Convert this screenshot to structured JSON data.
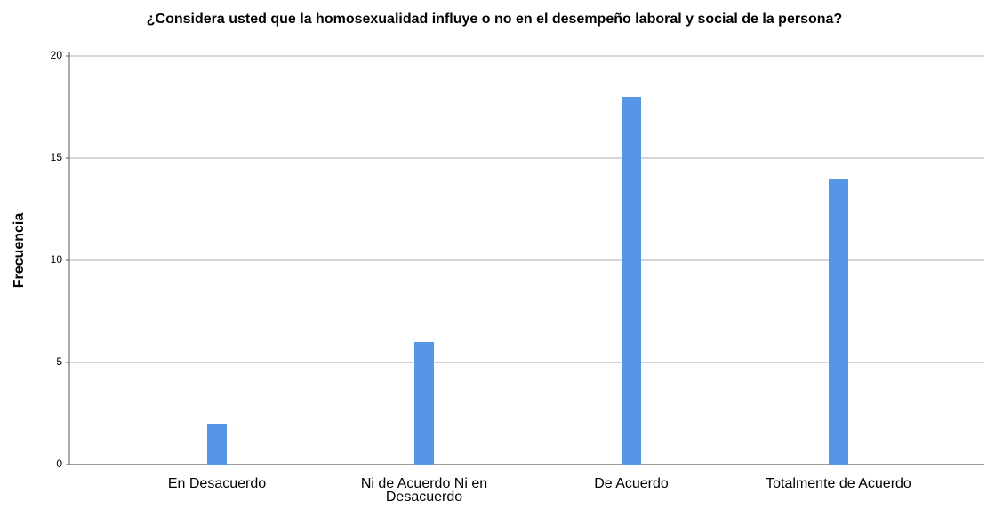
{
  "chart_data": {
    "type": "bar",
    "title": "¿Considera usted que la homosexualidad influye o no en el desempeño laboral y social de la persona?",
    "y_label": "Frecuencia",
    "categories": [
      "En Desacuerdo",
      "Ni de Acuerdo Ni en Desacuerdo",
      "De Acuerdo",
      "Totalmente de Acuerdo"
    ],
    "values": [
      2,
      6,
      18,
      14
    ],
    "color": "#5596e6",
    "ylim": [
      0,
      20
    ],
    "yticks": [
      0,
      5,
      10,
      15,
      20
    ],
    "grid": true
  }
}
